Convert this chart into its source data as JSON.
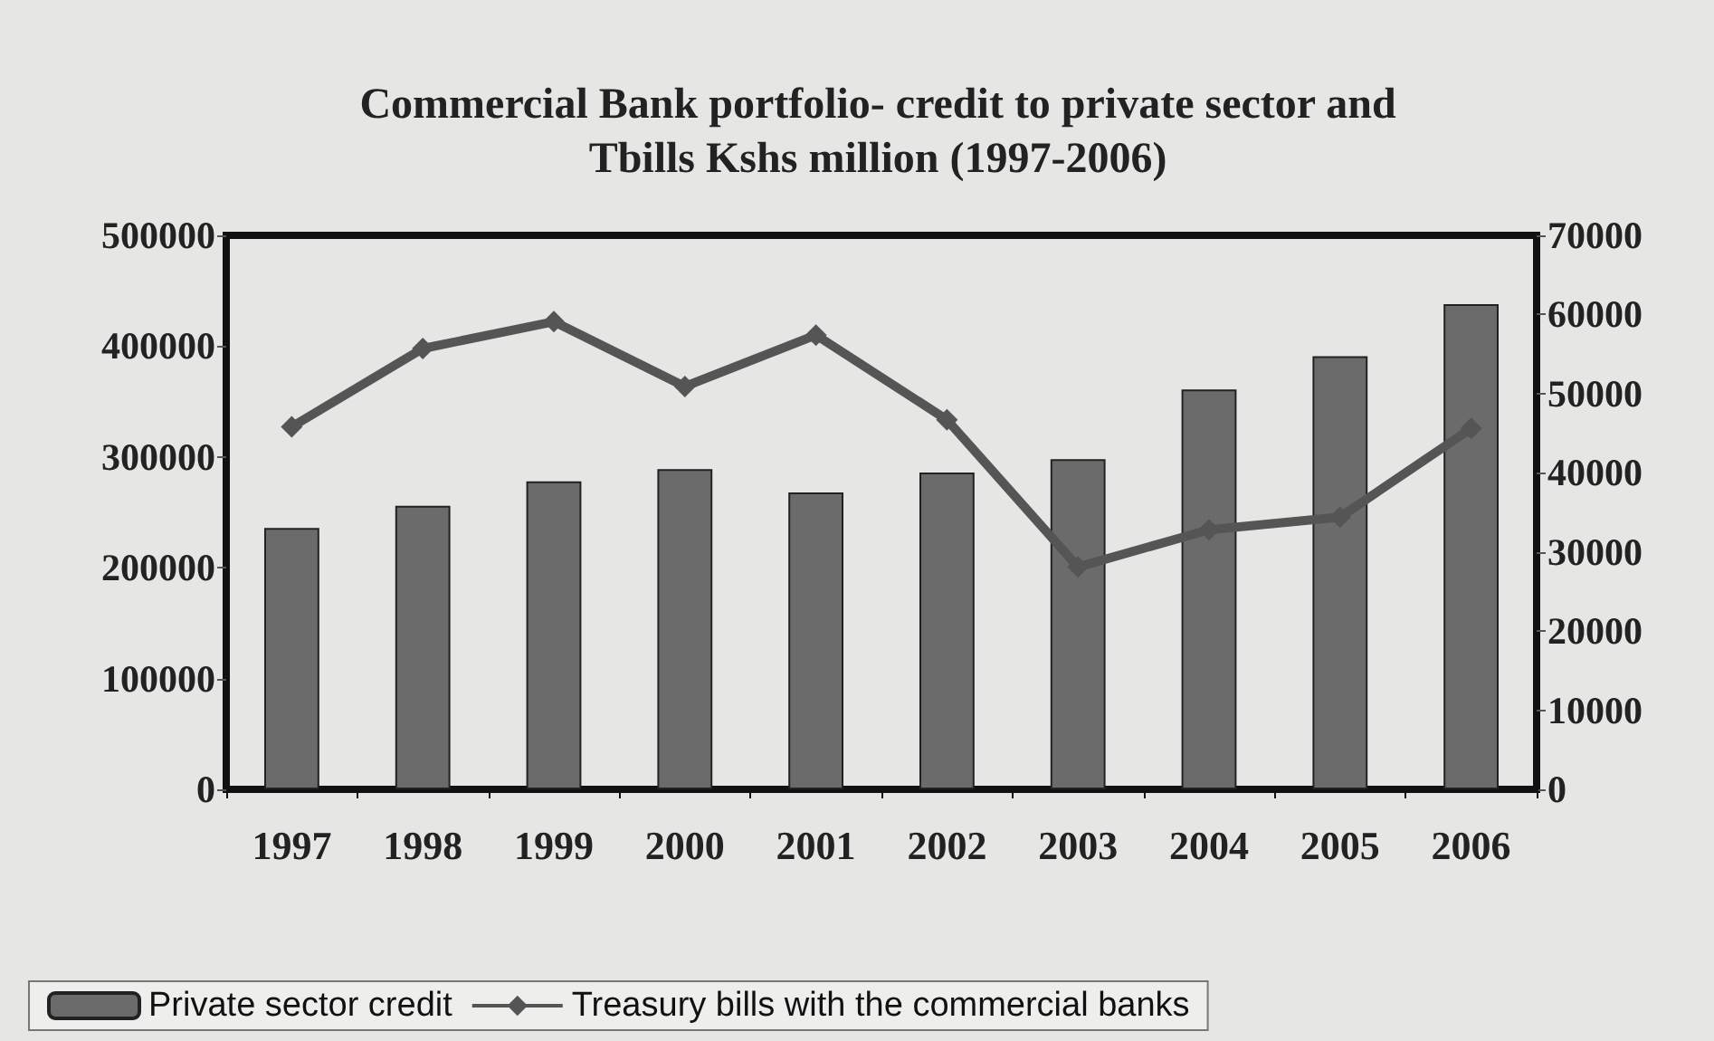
{
  "chart_data": {
    "type": "bar",
    "title": "Commercial Bank portfolio- credit to private sector and\nTbills Kshs million (1997-2006)",
    "categories": [
      "1997",
      "1998",
      "1999",
      "2000",
      "2001",
      "2002",
      "2003",
      "2004",
      "2005",
      "2006"
    ],
    "series": [
      {
        "name": "Private sector credit",
        "color": "#6b6b6b",
        "values": [
          236000,
          256000,
          278000,
          289000,
          268000,
          286000,
          298000,
          361000,
          391000,
          438000
        ]
      },
      {
        "name": "Treasury bills with the commercial banks",
        "type": "line",
        "axis": "y2",
        "color": "#555555",
        "values": [
          45800,
          55700,
          59100,
          50900,
          57400,
          46700,
          28100,
          32800,
          34400,
          45600
        ]
      }
    ],
    "ylim": [
      0,
      500000
    ],
    "yticks": [
      0,
      100000,
      200000,
      300000,
      400000,
      500000
    ],
    "y2lim": [
      0,
      70000
    ],
    "y2ticks": [
      0,
      10000,
      20000,
      30000,
      40000,
      50000,
      60000,
      70000
    ],
    "grid": false,
    "legend": "bottom left",
    "marker": "diamond",
    "line_style": "solid"
  }
}
